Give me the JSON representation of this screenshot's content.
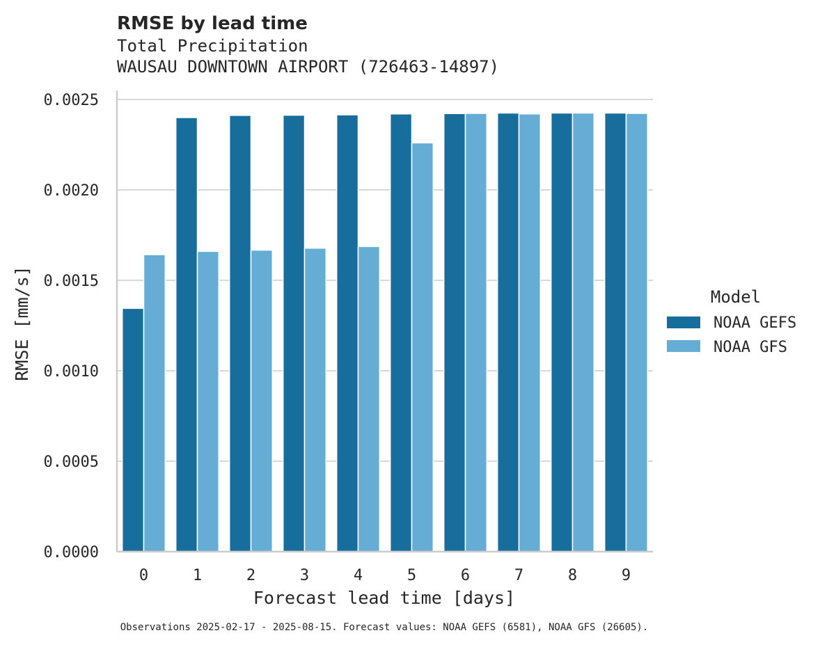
{
  "chart_data": {
    "type": "bar",
    "title": "RMSE by lead time",
    "subtitle_lines": [
      "Total Precipitation",
      "WAUSAU DOWNTOWN AIRPORT (726463-14897)"
    ],
    "xlabel": "Forecast lead time [days]",
    "ylabel": "RMSE [mm/s]",
    "categories": [
      "0",
      "1",
      "2",
      "3",
      "4",
      "5",
      "6",
      "7",
      "8",
      "9"
    ],
    "series": [
      {
        "name": "NOAA GEFS",
        "color": "#176d9c",
        "values": [
          0.001345,
          0.0024,
          0.002412,
          0.002413,
          0.002415,
          0.00242,
          0.002422,
          0.002425,
          0.002425,
          0.002425
        ]
      },
      {
        "name": "NOAA GFS",
        "color": "#66add6",
        "values": [
          0.001642,
          0.00166,
          0.001667,
          0.001678,
          0.001687,
          0.00226,
          0.002423,
          0.00242,
          0.002425,
          0.002423
        ]
      }
    ],
    "ylim": [
      0,
      0.0025
    ],
    "yticks": [
      0.0,
      0.0005,
      0.001,
      0.0015,
      0.002,
      0.0025
    ],
    "ytick_labels": [
      "0.0000",
      "0.0005",
      "0.0010",
      "0.0015",
      "0.0020",
      "0.0025"
    ],
    "grid": "horizontal",
    "legend": {
      "title": "Model",
      "placement": "right-outside"
    },
    "footnote": "Observations 2025-02-17 - 2025-08-15. Forecast values: NOAA GEFS (6581), NOAA GFS (26605)."
  },
  "colors": {
    "gefs": "#176d9c",
    "gfs": "#66add6",
    "grid": "#cccccc",
    "axis": "#cccccc",
    "text": "#262626",
    "background": "#ffffff"
  }
}
